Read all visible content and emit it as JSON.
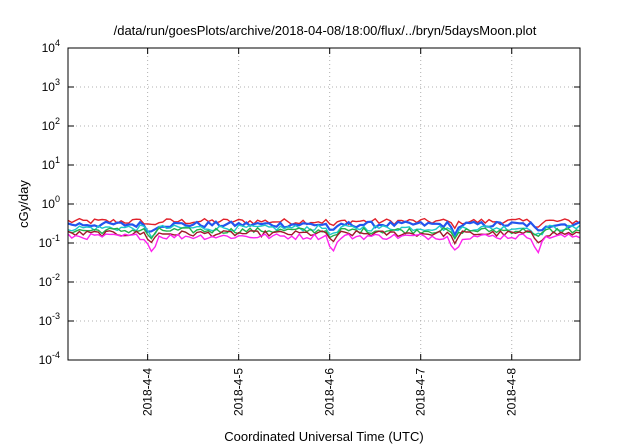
{
  "chart_data": {
    "type": "line",
    "title": "/data/run/goesPlots/archive/2018-04-08/18:00/flux/../bryn/5daysMoon.plot",
    "xlabel": "Coordinated Universal Time (UTC)",
    "ylabel": "cGy/day",
    "yscale": "log",
    "ylim": [
      0.0001,
      10000
    ],
    "y_ticks": [
      {
        "base": "10",
        "exp": "4",
        "value": 10000
      },
      {
        "base": "10",
        "exp": "3",
        "value": 1000
      },
      {
        "base": "10",
        "exp": "2",
        "value": 100
      },
      {
        "base": "10",
        "exp": "1",
        "value": 10
      },
      {
        "base": "10",
        "exp": "0",
        "value": 1
      },
      {
        "base": "10",
        "exp": "-1",
        "value": 0.1
      },
      {
        "base": "10",
        "exp": "-2",
        "value": 0.01
      },
      {
        "base": "10",
        "exp": "-3",
        "value": 0.001
      },
      {
        "base": "10",
        "exp": "-4",
        "value": 0.0001
      }
    ],
    "xlim": [
      "2018-04-03T03:00",
      "2018-04-08T18:00"
    ],
    "x_ticks": [
      "2018-4-4",
      "2018-4-5",
      "2018-4-6",
      "2018-4-7",
      "2018-4-8"
    ],
    "grid": true,
    "legend": "none",
    "series": [
      {
        "color": "#e0202a",
        "base": 0.36,
        "x_step_hours": 2
      },
      {
        "color": "#2255ee",
        "base": 0.3,
        "x_step_hours": 2
      },
      {
        "color": "#1ec8c8",
        "base": 0.245,
        "x_step_hours": 2
      },
      {
        "color": "#22b04a",
        "base": 0.21,
        "x_step_hours": 2
      },
      {
        "color": "#a0182a",
        "base": 0.175,
        "x_step_hours": 2
      },
      {
        "color": "#ff22ee",
        "base": 0.148,
        "x_step_hours": 2
      }
    ]
  }
}
